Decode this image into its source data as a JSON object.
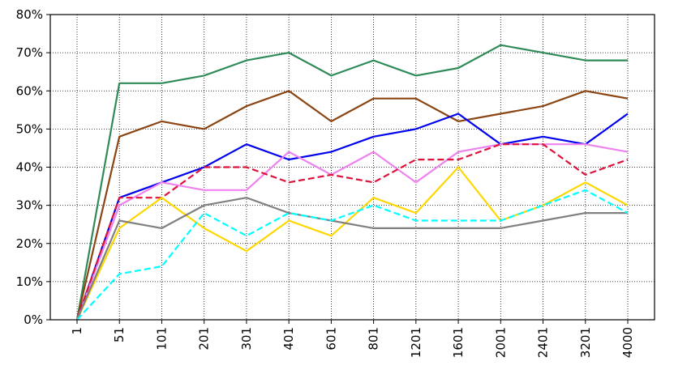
{
  "chart_data": {
    "type": "line",
    "title": "",
    "xlabel": "",
    "ylabel": "",
    "categories": [
      "1",
      "51",
      "101",
      "201",
      "301",
      "401",
      "601",
      "801",
      "1201",
      "1601",
      "2001",
      "2401",
      "3201",
      "4000"
    ],
    "ylim": [
      0,
      80
    ],
    "y_ticks": [
      0,
      10,
      20,
      30,
      40,
      50,
      60,
      70,
      80
    ],
    "y_tick_labels": [
      "0%",
      "10%",
      "20%",
      "30%",
      "40%",
      "50%",
      "60%",
      "70%",
      "80%"
    ],
    "grid": true,
    "legend": "none",
    "series": [
      {
        "color": "#2e8b57",
        "dash": "solid",
        "values": [
          0,
          62,
          62,
          64,
          68,
          70,
          64,
          68,
          64,
          66,
          72,
          70,
          68,
          68
        ]
      },
      {
        "color": "#8b4513",
        "dash": "solid",
        "values": [
          0,
          48,
          52,
          50,
          56,
          60,
          52,
          58,
          58,
          52,
          54,
          56,
          60,
          58
        ]
      },
      {
        "color": "#0000ee",
        "dash": "solid",
        "values": [
          0,
          32,
          36,
          40,
          46,
          42,
          44,
          48,
          50,
          54,
          46,
          48,
          46,
          54
        ]
      },
      {
        "color": "#ee82ee",
        "dash": "solid",
        "values": [
          0,
          30,
          36,
          34,
          34,
          44,
          38,
          44,
          36,
          44,
          46,
          46,
          46,
          44
        ]
      },
      {
        "color": "#dc143c",
        "dash": "dashed",
        "values": [
          0,
          32,
          32,
          40,
          40,
          36,
          38,
          36,
          42,
          42,
          46,
          46,
          38,
          42
        ]
      },
      {
        "color": "#ffd700",
        "dash": "solid",
        "values": [
          0,
          24,
          32,
          24,
          18,
          26,
          22,
          32,
          28,
          40,
          26,
          30,
          36,
          30
        ]
      },
      {
        "color": "#808080",
        "dash": "solid",
        "values": [
          0,
          26,
          24,
          30,
          32,
          28,
          26,
          24,
          24,
          24,
          24,
          26,
          28,
          28
        ]
      },
      {
        "color": "#00ffff",
        "dash": "dashed",
        "values": [
          0,
          12,
          14,
          28,
          22,
          28,
          26,
          30,
          26,
          26,
          26,
          30,
          34,
          28
        ]
      }
    ]
  }
}
